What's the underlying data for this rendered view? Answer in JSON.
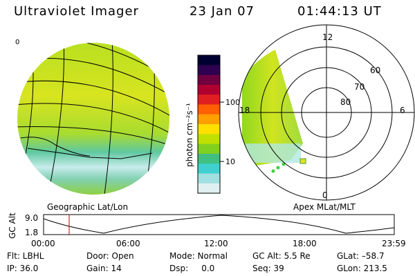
{
  "header": {
    "title": "Ultraviolet Imager",
    "date": "23 Jan 07",
    "time": "01:44:13 UT"
  },
  "left_panel": {
    "caption": "Geographic Lat/Lon",
    "edge_label": "0"
  },
  "colorbar": {
    "unit_label": "photon cm⁻²s⁻¹",
    "ticks": [
      "100",
      "10"
    ],
    "colors": [
      "#000030",
      "#300050",
      "#700040",
      "#b00030",
      "#e02020",
      "#ff6000",
      "#ffa000",
      "#ffe000",
      "#c0e000",
      "#80d020",
      "#40c080",
      "#40d0d0",
      "#a0e0e0",
      "#e0f0f0"
    ]
  },
  "polar_panel": {
    "caption": "Apex MLat/MLT",
    "mlt_labels": {
      "top": "12",
      "left": "18",
      "right": "6",
      "bottom": "0"
    },
    "lat_labels": [
      "60",
      "70",
      "80"
    ]
  },
  "timeline": {
    "axis_label": "GC Alt",
    "y_top": "9.0",
    "y_bottom": "1.8",
    "x_ticks": [
      "00:00",
      "06:00",
      "12:00",
      "18:00",
      "23:59"
    ],
    "current_time_fraction": 0.073
  },
  "info": {
    "flt": "Flt: LBHL",
    "ip": "IP: 36.0",
    "door": "Door: Open",
    "gain": "Gain: 14",
    "mode": "Mode: Normal",
    "dsp": "Dsp:     0.0",
    "gc_alt": "GC Alt: 5.5 Re",
    "seq": "Seq: 39",
    "glat": "GLat: –58.7",
    "glon": "GLon: 213.5"
  }
}
